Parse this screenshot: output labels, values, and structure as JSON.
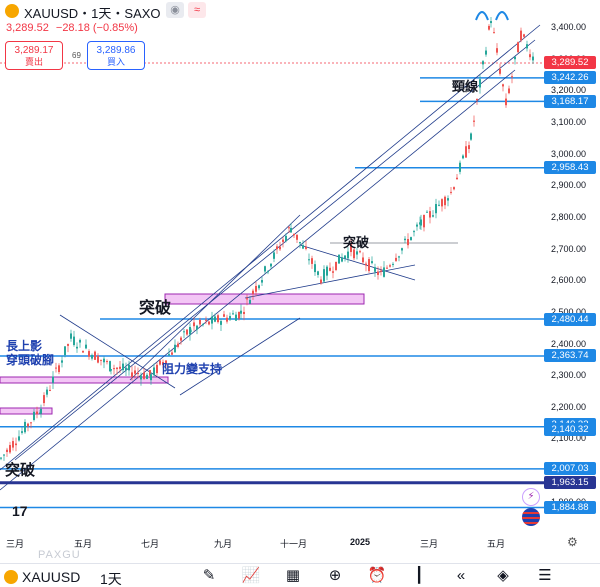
{
  "header": {
    "title": "XAUUSD・1天・SAXO",
    "last_price": "3,289.52",
    "change": "−28.18 (−0.85%)"
  },
  "trade": {
    "sell_price": "3,289.17",
    "sell_label": "賣出",
    "spread": "69",
    "buy_price": "3,289.86",
    "buy_label": "買入"
  },
  "price_axis": {
    "ticks": [
      "3,400.00",
      "3,300.00",
      "3,200.00",
      "3,100.00",
      "3,000.00",
      "2,900.00",
      "2,800.00",
      "2,700.00",
      "2,600.00",
      "2,500.00",
      "2,400.00",
      "2,300.00",
      "2,200.00",
      "2,100.00",
      "2,000.00",
      "1,900.00"
    ],
    "tags": [
      {
        "label": "3,289.52",
        "style": "red"
      },
      {
        "label": "3,242.26",
        "style": "blue"
      },
      {
        "label": "3,168.17",
        "style": "blue"
      },
      {
        "label": "2,958.43",
        "style": "blue"
      },
      {
        "label": "2,480.44",
        "style": "blue"
      },
      {
        "label": "2,363.74",
        "style": "blue"
      },
      {
        "label": "2,140.32",
        "style": "blue"
      },
      {
        "label": "2,140.32",
        "style": "blue"
      },
      {
        "label": "2,007.03",
        "style": "blue"
      },
      {
        "label": "1,963.15",
        "style": "navy"
      },
      {
        "label": "1,884.88",
        "style": "blue"
      }
    ]
  },
  "time_axis": {
    "labels": [
      "三月",
      "五月",
      "七月",
      "九月",
      "十一月",
      "2025",
      "三月",
      "五月"
    ]
  },
  "annotations": {
    "neckline": "頸線",
    "breakout_top": "突破",
    "breakout_mid": "突破",
    "breakout_bottom": "突破",
    "upper_shadow_1": "長上影",
    "upper_shadow_2": "穿頭破腳",
    "resistance_support": "阻力變支持"
  },
  "bottom_bar": {
    "symbol": "XAUUSD",
    "interval": "1天",
    "watermark": "PAXGU"
  },
  "icons": {
    "tools": [
      "pencil-icon",
      "indicators-icon",
      "templates-icon",
      "add-icon",
      "alert-icon",
      "chart-type-icon",
      "replay-icon",
      "layers-icon",
      "settings-sliders-icon"
    ]
  }
}
